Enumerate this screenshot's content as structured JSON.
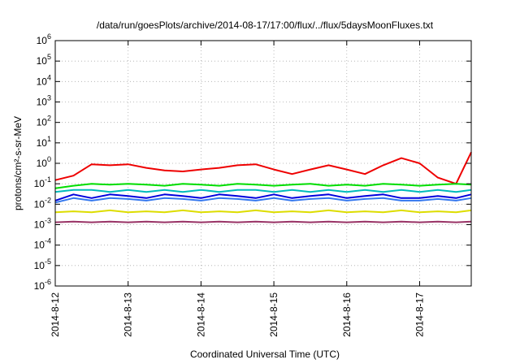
{
  "chart_data": {
    "type": "line",
    "title": "/data/run/goesPlots/archive/2014-08-17/17:00/flux/../flux/5daysMoonFluxes.txt",
    "xlabel": "Coordinated Universal Time (UTC)",
    "ylabel": "protons/cm²-s-sr-MeV",
    "y_scale": "log",
    "ylim": [
      1e-06,
      1000000.0
    ],
    "xlim": [
      "2014-08-12",
      "2014-08-17 17:00"
    ],
    "x_ticks": [
      "2014-8-12",
      "2014-8-13",
      "2014-8-14",
      "2014-8-15",
      "2014-8-16",
      "2014-8-17"
    ],
    "y_ticks": [
      {
        "base": "10",
        "exp": "-6"
      },
      {
        "base": "10",
        "exp": "-5"
      },
      {
        "base": "10",
        "exp": "-4"
      },
      {
        "base": "10",
        "exp": "-3"
      },
      {
        "base": "10",
        "exp": "-2"
      },
      {
        "base": "10",
        "exp": "-1"
      },
      {
        "base": "10",
        "exp": "0"
      },
      {
        "base": "10",
        "exp": "1"
      },
      {
        "base": "10",
        "exp": "2"
      },
      {
        "base": "10",
        "exp": "3"
      },
      {
        "base": "10",
        "exp": "4"
      },
      {
        "base": "10",
        "exp": "5"
      },
      {
        "base": "10",
        "exp": "6"
      }
    ],
    "grid": true,
    "legend": "none",
    "x": [
      "2014-08-12 00:00",
      "2014-08-12 06:00",
      "2014-08-12 12:00",
      "2014-08-12 18:00",
      "2014-08-13 00:00",
      "2014-08-13 06:00",
      "2014-08-13 12:00",
      "2014-08-13 18:00",
      "2014-08-14 00:00",
      "2014-08-14 06:00",
      "2014-08-14 12:00",
      "2014-08-14 18:00",
      "2014-08-15 00:00",
      "2014-08-15 06:00",
      "2014-08-15 12:00",
      "2014-08-15 18:00",
      "2014-08-16 00:00",
      "2014-08-16 06:00",
      "2014-08-16 12:00",
      "2014-08-16 18:00",
      "2014-08-17 00:00",
      "2014-08-17 06:00",
      "2014-08-17 12:00",
      "2014-08-17 17:00"
    ],
    "series": [
      {
        "color": "#ee0000",
        "values": [
          0.15,
          0.25,
          0.9,
          0.8,
          0.9,
          0.6,
          0.45,
          0.4,
          0.5,
          0.6,
          0.8,
          0.9,
          0.5,
          0.3,
          0.5,
          0.8,
          0.5,
          0.3,
          0.8,
          1.8,
          1.0,
          0.2,
          0.1,
          3.5
        ]
      },
      {
        "color": "#00dd00",
        "values": [
          0.06,
          0.08,
          0.1,
          0.09,
          0.1,
          0.09,
          0.08,
          0.1,
          0.09,
          0.08,
          0.1,
          0.09,
          0.08,
          0.09,
          0.1,
          0.08,
          0.09,
          0.08,
          0.1,
          0.09,
          0.08,
          0.09,
          0.1,
          0.09
        ]
      },
      {
        "color": "#00bbbb",
        "values": [
          0.04,
          0.05,
          0.05,
          0.04,
          0.05,
          0.04,
          0.05,
          0.04,
          0.05,
          0.04,
          0.05,
          0.05,
          0.04,
          0.05,
          0.04,
          0.05,
          0.04,
          0.05,
          0.04,
          0.05,
          0.04,
          0.05,
          0.04,
          0.05
        ]
      },
      {
        "color": "#0000dd",
        "values": [
          0.015,
          0.03,
          0.02,
          0.03,
          0.025,
          0.02,
          0.03,
          0.025,
          0.02,
          0.03,
          0.025,
          0.02,
          0.03,
          0.02,
          0.025,
          0.03,
          0.02,
          0.025,
          0.03,
          0.02,
          0.02,
          0.025,
          0.02,
          0.03
        ]
      },
      {
        "color": "#3377ee",
        "values": [
          0.012,
          0.02,
          0.015,
          0.02,
          0.018,
          0.015,
          0.02,
          0.018,
          0.015,
          0.02,
          0.018,
          0.015,
          0.02,
          0.015,
          0.018,
          0.02,
          0.015,
          0.018,
          0.02,
          0.015,
          0.015,
          0.018,
          0.015,
          0.02
        ]
      },
      {
        "color": "#dddd00",
        "values": [
          0.004,
          0.0045,
          0.004,
          0.005,
          0.004,
          0.0045,
          0.004,
          0.005,
          0.004,
          0.0045,
          0.004,
          0.005,
          0.004,
          0.0045,
          0.004,
          0.005,
          0.004,
          0.0045,
          0.004,
          0.005,
          0.004,
          0.0045,
          0.004,
          0.005
        ]
      },
      {
        "color": "#993366",
        "values": [
          0.0013,
          0.0014,
          0.0013,
          0.0014,
          0.0013,
          0.0014,
          0.0013,
          0.0014,
          0.0013,
          0.0014,
          0.0013,
          0.0014,
          0.0013,
          0.0014,
          0.0013,
          0.0014,
          0.0013,
          0.0014,
          0.0013,
          0.0014,
          0.0013,
          0.0014,
          0.0013,
          0.0014
        ]
      }
    ]
  }
}
